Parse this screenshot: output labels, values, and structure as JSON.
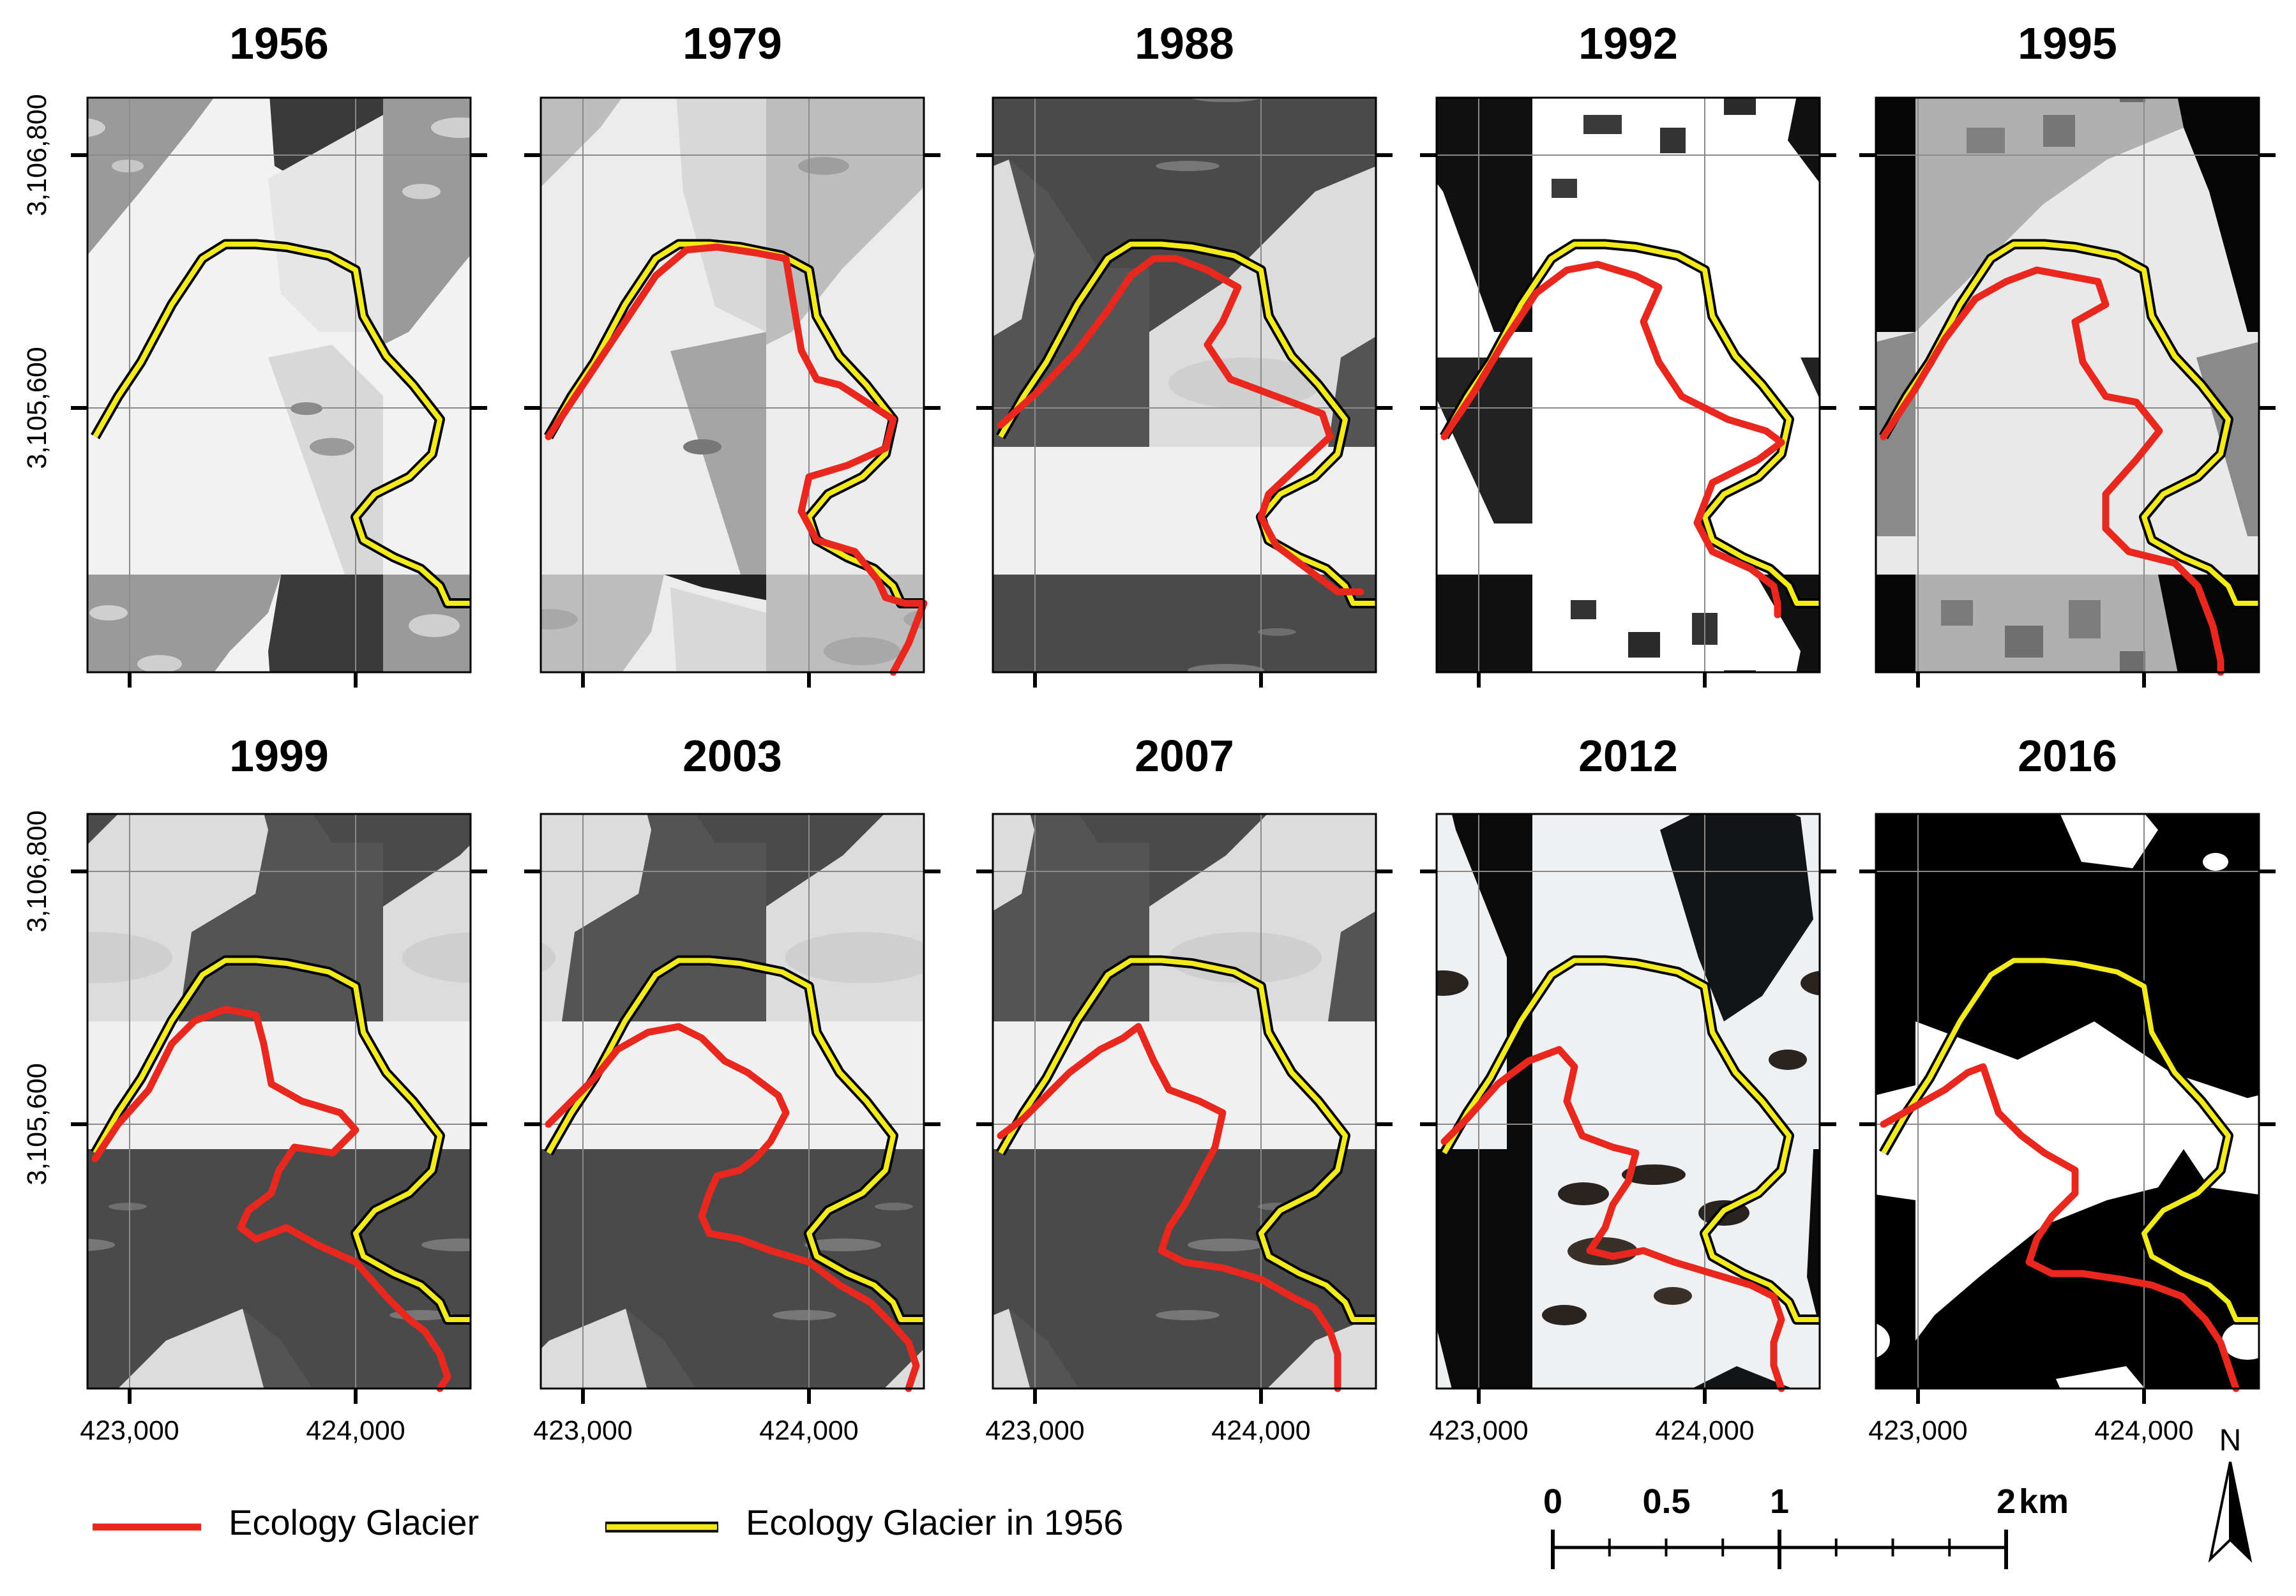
{
  "panels": [
    {
      "year": "1956",
      "style": "photo-gray",
      "show_red": false
    },
    {
      "year": "1979",
      "style": "photo-light",
      "show_red": true
    },
    {
      "year": "1988",
      "style": "landsat-dark",
      "show_red": true
    },
    {
      "year": "1992",
      "style": "binary-bright",
      "show_red": true
    },
    {
      "year": "1995",
      "style": "landsat-gray",
      "show_red": true
    },
    {
      "year": "1999",
      "style": "landsat-dark",
      "show_red": true
    },
    {
      "year": "2003",
      "style": "landsat-dark",
      "show_red": true
    },
    {
      "year": "2007",
      "style": "landsat-dark",
      "show_red": true
    },
    {
      "year": "2012",
      "style": "color-hires",
      "show_red": true
    },
    {
      "year": "2016",
      "style": "binary-bw",
      "show_red": true
    }
  ],
  "axes": {
    "x_ticks": [
      "423,000",
      "424,000"
    ],
    "y_ticks": [
      "3,106,800",
      "3,105,600"
    ]
  },
  "legend": {
    "current_label": "Ecology Glacier",
    "current_color": "#e8281e",
    "past_label": "Ecology Glacier in 1956",
    "past_color": "#f2ea1a",
    "past_outline": "#000000"
  },
  "scale_bar": {
    "labels": [
      "0",
      "0.5",
      "1",
      "2"
    ],
    "unit": "km"
  },
  "north_arrow": {
    "label": "N",
    "icon": "north-arrow-icon"
  }
}
